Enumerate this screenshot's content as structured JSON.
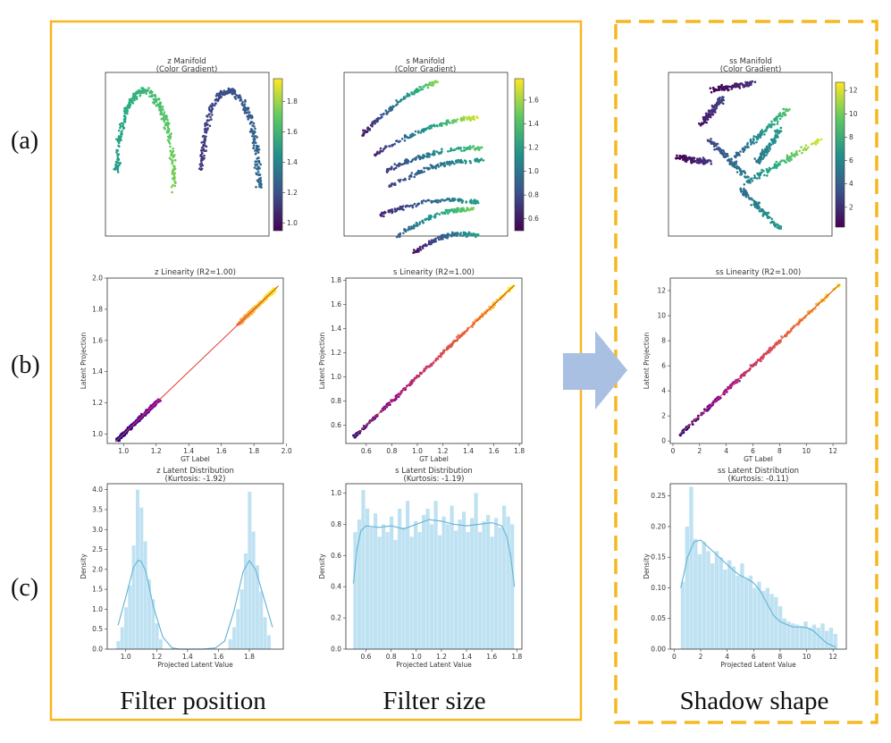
{
  "row_labels": [
    "(a)",
    "(b)",
    "(c)"
  ],
  "group_labels": [
    "Filter position",
    "Filter size",
    "Shadow shape"
  ],
  "colors": {
    "frame": "#f5b820",
    "arrow": "#a9c0e3",
    "fit_line": "#e03a2f",
    "hist_fill": "#bfe2f2",
    "kde": "#6bb7d6",
    "viridis_low": "#440154",
    "viridis_high": "#fde725"
  },
  "chart_data": [
    {
      "type": "scatter",
      "id": "z-manifold",
      "title": "z Manifold",
      "subtitle": "(Color Gradient)",
      "colorbar_range": [
        0.95,
        1.95
      ],
      "colorbar_ticks": [
        "1.0",
        "1.2",
        "1.4",
        "1.6",
        "1.8"
      ],
      "colorbar_tick_values": [
        1.0,
        1.2,
        1.4,
        1.6,
        1.8
      ]
    },
    {
      "type": "scatter",
      "id": "s-manifold",
      "title": "s Manifold",
      "subtitle": "(Color Gradient)",
      "colorbar_range": [
        0.5,
        1.78
      ],
      "colorbar_ticks": [
        "0.6",
        "0.8",
        "1.0",
        "1.2",
        "1.4",
        "1.6"
      ],
      "colorbar_tick_values": [
        0.6,
        0.8,
        1.0,
        1.2,
        1.4,
        1.6
      ]
    },
    {
      "type": "scatter",
      "id": "ss-manifold",
      "title": "ss Manifold",
      "subtitle": "(Color Gradient)",
      "colorbar_range": [
        0.3,
        12.7
      ],
      "colorbar_ticks": [
        "2",
        "4",
        "6",
        "8",
        "10",
        "12"
      ],
      "colorbar_tick_values": [
        2,
        4,
        6,
        8,
        10,
        12
      ]
    },
    {
      "type": "scatter",
      "id": "z-linearity",
      "title": "z Linearity (R2=1.00)",
      "xlabel": "GT Label",
      "ylabel": "Latent Projection",
      "xlim": [
        0.9,
        1.98
      ],
      "ylim": [
        0.94,
        2.0
      ],
      "xticks": [
        1.0,
        1.2,
        1.4,
        1.6,
        1.8,
        2.0
      ],
      "xtick_labels": [
        "1.0",
        "1.2",
        "1.4",
        "1.6",
        "1.8",
        "2.0"
      ],
      "yticks": [
        1.0,
        1.2,
        1.4,
        1.6,
        1.8,
        2.0
      ],
      "ytick_labels": [
        "1.0",
        "1.2",
        "1.4",
        "1.6",
        "1.8",
        "2.0"
      ],
      "clusters": [
        [
          0.96,
          1.22
        ],
        [
          1.7,
          1.93
        ]
      ],
      "fit_line": [
        [
          0.95,
          0.95
        ],
        [
          1.95,
          1.95
        ]
      ]
    },
    {
      "type": "scatter",
      "id": "s-linearity",
      "title": "s Linearity (R2=1.00)",
      "xlabel": "GT Label",
      "ylabel": "Latent Projection",
      "xlim": [
        0.44,
        1.82
      ],
      "ylim": [
        0.45,
        1.82
      ],
      "xticks": [
        0.6,
        0.8,
        1.0,
        1.2,
        1.4,
        1.6,
        1.8
      ],
      "xtick_labels": [
        "0.6",
        "0.8",
        "1.0",
        "1.2",
        "1.4",
        "1.6",
        "1.8"
      ],
      "yticks": [
        0.6,
        0.8,
        1.0,
        1.2,
        1.4,
        1.6,
        1.8
      ],
      "ytick_labels": [
        "0.6",
        "0.8",
        "1.0",
        "1.2",
        "1.4",
        "1.6",
        "1.8"
      ],
      "clusters": [
        [
          0.5,
          1.76
        ]
      ],
      "fit_line": [
        [
          0.5,
          0.5
        ],
        [
          1.76,
          1.76
        ]
      ]
    },
    {
      "type": "scatter",
      "id": "ss-linearity",
      "title": "ss Linearity (R2=1.00)",
      "xlabel": "GT Label",
      "ylabel": "Latent Projection",
      "xlim": [
        -0.2,
        13.0
      ],
      "ylim": [
        -0.2,
        13.0
      ],
      "xticks": [
        0,
        2,
        4,
        6,
        8,
        10,
        12
      ],
      "xtick_labels": [
        "0",
        "2",
        "4",
        "6",
        "8",
        "10",
        "12"
      ],
      "yticks": [
        0,
        2,
        4,
        6,
        8,
        10,
        12
      ],
      "ytick_labels": [
        "0",
        "2",
        "4",
        "6",
        "8",
        "10",
        "12"
      ],
      "clusters": [
        [
          0.5,
          12.5
        ]
      ],
      "fit_line": [
        [
          0.5,
          0.5
        ],
        [
          12.5,
          12.5
        ]
      ]
    },
    {
      "type": "bar",
      "id": "z-latent",
      "title": "z Latent Distribution",
      "subtitle": "(Kurtosis: -1.92)",
      "xlabel": "Projected Latent Value",
      "ylabel": "Density",
      "xlim": [
        0.88,
        2.02
      ],
      "ylim": [
        0,
        4.15
      ],
      "xticks": [
        1.0,
        1.2,
        1.4,
        1.6,
        1.8
      ],
      "xtick_labels": [
        "1.0",
        "1.2",
        "1.4",
        "1.6",
        "1.8"
      ],
      "yticks": [
        0,
        0.5,
        1.0,
        1.5,
        2.0,
        2.5,
        3.0,
        3.5,
        4.0
      ],
      "ytick_labels": [
        "0.0",
        "0.5",
        "1.0",
        "1.5",
        "2.0",
        "2.5",
        "3.0",
        "3.5",
        "4.0"
      ],
      "bin_start": 0.94,
      "bin_width": 0.025,
      "values": [
        0.2,
        0.55,
        1.05,
        1.6,
        2.6,
        4.0,
        3.55,
        2.7,
        1.75,
        1.25,
        0.65,
        0.25,
        0,
        0,
        0,
        0,
        0,
        0,
        0,
        0,
        0,
        0,
        0,
        0,
        0,
        0,
        0,
        0,
        0,
        0.25,
        0.55,
        1.0,
        1.5,
        2.4,
        3.95,
        2.95,
        2.1,
        1.45,
        0.8,
        0.35
      ],
      "kde_x": [
        0.95,
        1.0,
        1.05,
        1.08,
        1.1,
        1.13,
        1.18,
        1.24,
        1.3,
        1.35,
        1.4,
        1.5,
        1.58,
        1.64,
        1.7,
        1.76,
        1.8,
        1.84,
        1.89,
        1.95
      ],
      "kde_y": [
        0.6,
        1.3,
        2.05,
        2.23,
        2.2,
        1.95,
        1.05,
        0.3,
        0.03,
        0.0,
        0.0,
        0.0,
        0.03,
        0.2,
        0.95,
        1.95,
        2.22,
        2.0,
        1.35,
        0.55
      ]
    },
    {
      "type": "bar",
      "id": "s-latent",
      "title": "s Latent Distribution",
      "subtitle": "(Kurtosis: -1.19)",
      "xlabel": "Projected Latent Value",
      "ylabel": "Density",
      "xlim": [
        0.44,
        1.84
      ],
      "ylim": [
        0,
        1.06
      ],
      "xticks": [
        0.6,
        0.8,
        1.0,
        1.2,
        1.4,
        1.6,
        1.8
      ],
      "xtick_labels": [
        "0.6",
        "0.8",
        "1.0",
        "1.2",
        "1.4",
        "1.6",
        "1.8"
      ],
      "yticks": [
        0,
        0.2,
        0.4,
        0.6,
        0.8,
        1.0
      ],
      "ytick_labels": [
        "0.0",
        "0.2",
        "0.4",
        "0.6",
        "0.8",
        "1.0"
      ],
      "bin_start": 0.5,
      "bin_width": 0.032,
      "values": [
        0.75,
        0.83,
        1.02,
        0.9,
        0.78,
        0.87,
        0.72,
        0.8,
        0.75,
        0.85,
        0.7,
        0.9,
        0.78,
        0.95,
        0.72,
        0.82,
        0.75,
        0.86,
        0.9,
        0.8,
        0.95,
        0.73,
        0.85,
        0.8,
        0.92,
        0.76,
        0.83,
        0.88,
        0.75,
        0.84,
        1.0,
        0.75,
        0.82,
        0.86,
        0.72,
        0.84,
        0.78,
        0.92,
        0.85,
        0.8
      ],
      "kde_x": [
        0.5,
        0.53,
        0.56,
        0.6,
        0.7,
        0.8,
        0.9,
        1.0,
        1.1,
        1.2,
        1.3,
        1.4,
        1.5,
        1.6,
        1.68,
        1.72,
        1.75,
        1.78
      ],
      "kde_y": [
        0.42,
        0.65,
        0.76,
        0.79,
        0.78,
        0.79,
        0.77,
        0.8,
        0.83,
        0.82,
        0.8,
        0.79,
        0.8,
        0.81,
        0.79,
        0.72,
        0.6,
        0.4
      ]
    },
    {
      "type": "bar",
      "id": "ss-latent",
      "title": "ss Latent Distribution",
      "subtitle": "(Kurtosis: -0.11)",
      "xlabel": "Projected Latent Value",
      "ylabel": "Density",
      "xlim": [
        -0.3,
        13.0
      ],
      "ylim": [
        0,
        0.27
      ],
      "xticks": [
        0,
        2,
        4,
        6,
        8,
        10,
        12
      ],
      "xtick_labels": [
        "0",
        "2",
        "4",
        "6",
        "8",
        "10",
        "12"
      ],
      "yticks": [
        0,
        0.05,
        0.1,
        0.15,
        0.2,
        0.25
      ],
      "ytick_labels": [
        "0.00",
        "0.05",
        "0.10",
        "0.15",
        "0.20",
        "0.25"
      ],
      "bin_start": 0.5,
      "bin_width": 0.32,
      "values": [
        0.11,
        0.2,
        0.265,
        0.18,
        0.155,
        0.175,
        0.16,
        0.14,
        0.16,
        0.15,
        0.13,
        0.145,
        0.135,
        0.12,
        0.14,
        0.115,
        0.12,
        0.1,
        0.11,
        0.095,
        0.1,
        0.09,
        0.085,
        0.07,
        0.05,
        0.045,
        0.042,
        0.04,
        0.038,
        0.045,
        0.035,
        0.04,
        0.035,
        0.042,
        0.03,
        0.035,
        0.025
      ],
      "kde_x": [
        0.5,
        1.0,
        1.5,
        2.0,
        2.5,
        3.0,
        3.5,
        4.0,
        4.5,
        5.0,
        5.5,
        6.0,
        6.5,
        7.0,
        7.5,
        8.0,
        8.5,
        9.0,
        9.5,
        10.0,
        10.5,
        11.0,
        11.5,
        12.2
      ],
      "kde_y": [
        0.1,
        0.15,
        0.175,
        0.178,
        0.168,
        0.158,
        0.148,
        0.138,
        0.128,
        0.12,
        0.115,
        0.108,
        0.095,
        0.075,
        0.055,
        0.045,
        0.04,
        0.036,
        0.036,
        0.035,
        0.03,
        0.02,
        0.01,
        0.003
      ]
    }
  ]
}
